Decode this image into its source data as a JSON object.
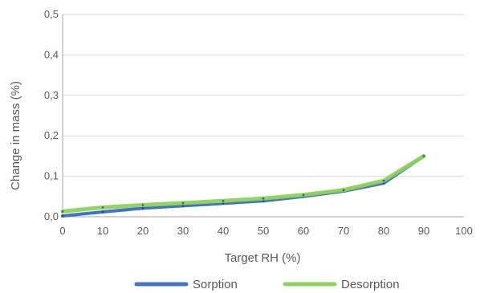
{
  "chart_data": {
    "type": "line",
    "xlabel": "Target RH (%)",
    "ylabel": "Change in mass (%)",
    "xlim": [
      0,
      100
    ],
    "ylim": [
      0,
      0.5
    ],
    "x_ticks": [
      "0",
      "10",
      "20",
      "30",
      "40",
      "50",
      "60",
      "70",
      "80",
      "90",
      "100"
    ],
    "y_ticks": [
      "0,0",
      "0,1",
      "0,2",
      "0,3",
      "0,4",
      "0,5"
    ],
    "grid": "horizontal",
    "legend_position": "bottom",
    "series": [
      {
        "name": "Sorption",
        "color": "#4472C4",
        "x": [
          0,
          10,
          20,
          30,
          40,
          50,
          60,
          70,
          80,
          90
        ],
        "y": [
          0.002,
          0.012,
          0.021,
          0.027,
          0.033,
          0.039,
          0.05,
          0.063,
          0.083,
          0.15
        ]
      },
      {
        "name": "Desorption",
        "color": "#8BD35A",
        "x": [
          0,
          10,
          20,
          30,
          40,
          50,
          60,
          70,
          80,
          90
        ],
        "y": [
          0.013,
          0.023,
          0.029,
          0.034,
          0.039,
          0.045,
          0.054,
          0.066,
          0.089,
          0.15
        ]
      }
    ]
  }
}
